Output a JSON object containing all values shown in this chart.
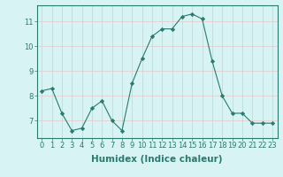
{
  "x": [
    0,
    1,
    2,
    3,
    4,
    5,
    6,
    7,
    8,
    9,
    10,
    11,
    12,
    13,
    14,
    15,
    16,
    17,
    18,
    19,
    20,
    21,
    22,
    23
  ],
  "y": [
    8.2,
    8.3,
    7.3,
    6.6,
    6.7,
    7.5,
    7.8,
    7.0,
    6.6,
    8.5,
    9.5,
    10.4,
    10.7,
    10.7,
    11.2,
    11.3,
    11.1,
    9.4,
    8.0,
    7.3,
    7.3,
    6.9,
    6.9,
    6.9
  ],
  "line_color": "#2a7a70",
  "marker": "D",
  "marker_size": 2.2,
  "bg_color": "#d7f3f3",
  "grid_color": "#b8d8d8",
  "grid_color_red": "#e8c8c8",
  "xlabel": "Humidex (Indice chaleur)",
  "ylim": [
    6.3,
    11.65
  ],
  "xlim": [
    -0.5,
    23.5
  ],
  "yticks": [
    7,
    8,
    9,
    10,
    11
  ],
  "xticks": [
    0,
    1,
    2,
    3,
    4,
    5,
    6,
    7,
    8,
    9,
    10,
    11,
    12,
    13,
    14,
    15,
    16,
    17,
    18,
    19,
    20,
    21,
    22,
    23
  ],
  "tick_color": "#2a7a70",
  "label_fontsize": 7.5,
  "tick_fontsize": 6.0
}
